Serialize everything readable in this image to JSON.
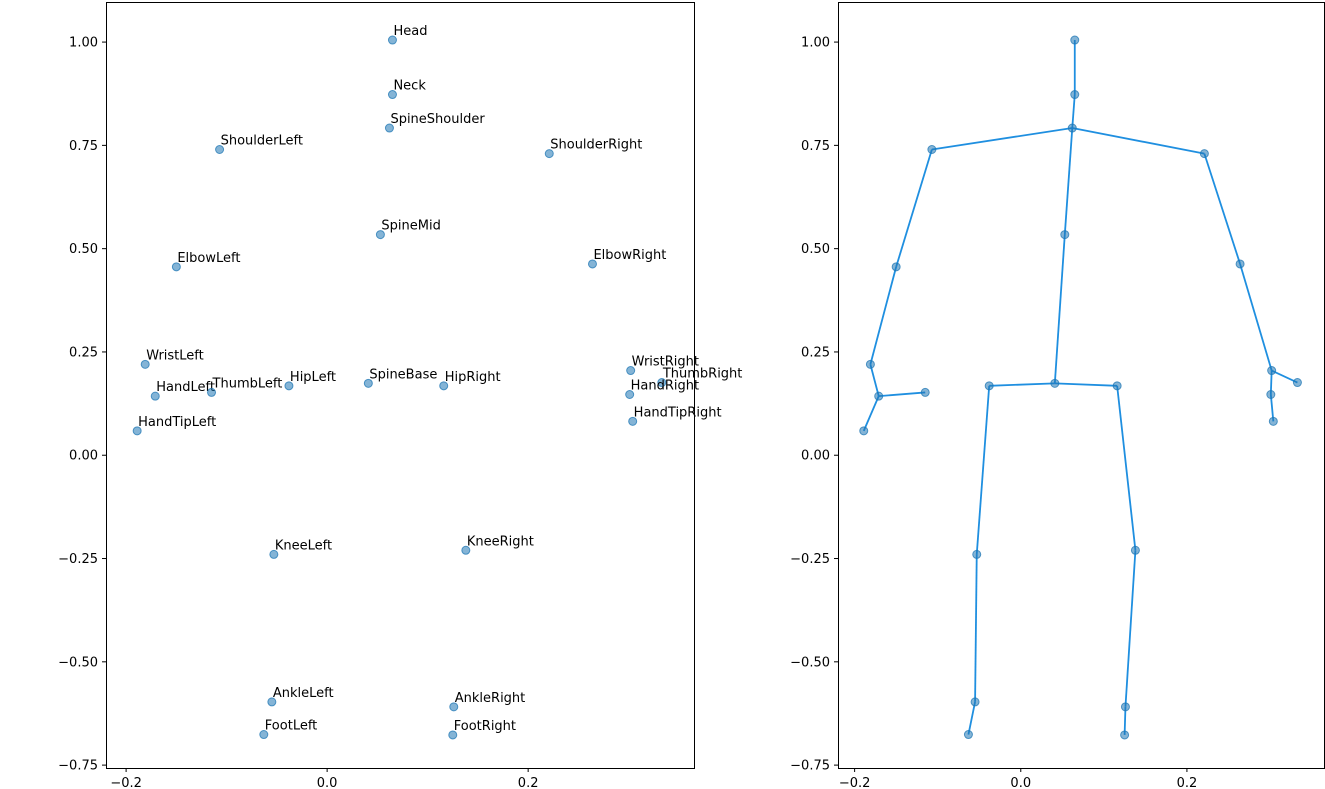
{
  "chart_data": [
    {
      "type": "scatter",
      "title": "",
      "xlabel": "",
      "ylabel": "",
      "xlim": [
        -0.22,
        0.365
      ],
      "ylim": [
        -0.757,
        1.097
      ],
      "xticks": [
        -0.2,
        0.0,
        0.2
      ],
      "xtick_labels": [
        "−0.2",
        "0.0",
        "0.2"
      ],
      "yticks": [
        -0.75,
        -0.5,
        -0.25,
        0.0,
        0.25,
        0.5,
        0.75,
        1.0
      ],
      "ytick_labels": [
        "−0.75",
        "−0.50",
        "−0.25",
        "0.00",
        "0.25",
        "0.50",
        "0.75",
        "1.00"
      ],
      "grid": false,
      "marker_color": "#1f77b4",
      "points": [
        {
          "label": "Head",
          "x": 0.065,
          "y": 1.005
        },
        {
          "label": "Neck",
          "x": 0.065,
          "y": 0.873
        },
        {
          "label": "SpineShoulder",
          "x": 0.062,
          "y": 0.792
        },
        {
          "label": "ShoulderLeft",
          "x": -0.107,
          "y": 0.74
        },
        {
          "label": "ShoulderRight",
          "x": 0.221,
          "y": 0.73
        },
        {
          "label": "SpineMid",
          "x": 0.053,
          "y": 0.534
        },
        {
          "label": "ElbowLeft",
          "x": -0.15,
          "y": 0.456
        },
        {
          "label": "ElbowRight",
          "x": 0.264,
          "y": 0.463
        },
        {
          "label": "WristLeft",
          "x": -0.181,
          "y": 0.22
        },
        {
          "label": "WristRight",
          "x": 0.302,
          "y": 0.205
        },
        {
          "label": "HandLeft",
          "x": -0.171,
          "y": 0.143
        },
        {
          "label": "ThumbLeft",
          "x": -0.115,
          "y": 0.152
        },
        {
          "label": "HipLeft",
          "x": -0.038,
          "y": 0.168
        },
        {
          "label": "SpineBase",
          "x": 0.041,
          "y": 0.174
        },
        {
          "label": "HipRight",
          "x": 0.116,
          "y": 0.168
        },
        {
          "label": "ThumbRight",
          "x": 0.333,
          "y": 0.176
        },
        {
          "label": "HandRight",
          "x": 0.301,
          "y": 0.147
        },
        {
          "label": "HandTipLeft",
          "x": -0.189,
          "y": 0.059
        },
        {
          "label": "HandTipRight",
          "x": 0.304,
          "y": 0.082
        },
        {
          "label": "KneeLeft",
          "x": -0.053,
          "y": -0.24
        },
        {
          "label": "KneeRight",
          "x": 0.138,
          "y": -0.23
        },
        {
          "label": "AnkleLeft",
          "x": -0.055,
          "y": -0.597
        },
        {
          "label": "AnkleRight",
          "x": 0.126,
          "y": -0.609
        },
        {
          "label": "FootLeft",
          "x": -0.063,
          "y": -0.676
        },
        {
          "label": "FootRight",
          "x": 0.125,
          "y": -0.677
        }
      ]
    },
    {
      "type": "line",
      "title": "",
      "xlabel": "",
      "ylabel": "",
      "xlim": [
        -0.22,
        0.365
      ],
      "ylim": [
        -0.757,
        1.097
      ],
      "xticks": [
        -0.2,
        0.0,
        0.2
      ],
      "xtick_labels": [
        "−0.2",
        "0.0",
        "0.2"
      ],
      "yticks": [
        -0.75,
        -0.5,
        -0.25,
        0.0,
        0.25,
        0.5,
        0.75,
        1.0
      ],
      "ytick_labels": [
        "−0.75",
        "−0.50",
        "−0.25",
        "0.00",
        "0.25",
        "0.50",
        "0.75",
        "1.00"
      ],
      "grid": false,
      "line_color": "#1f8fe0",
      "marker_color": "#1f77b4",
      "points": [
        {
          "x": 0.065,
          "y": 1.005
        },
        {
          "x": 0.065,
          "y": 0.873
        },
        {
          "x": 0.062,
          "y": 0.792
        },
        {
          "x": -0.107,
          "y": 0.74
        },
        {
          "x": 0.221,
          "y": 0.73
        },
        {
          "x": 0.053,
          "y": 0.534
        },
        {
          "x": -0.15,
          "y": 0.456
        },
        {
          "x": 0.264,
          "y": 0.463
        },
        {
          "x": -0.181,
          "y": 0.22
        },
        {
          "x": 0.302,
          "y": 0.205
        },
        {
          "x": -0.171,
          "y": 0.143
        },
        {
          "x": -0.115,
          "y": 0.152
        },
        {
          "x": -0.038,
          "y": 0.168
        },
        {
          "x": 0.041,
          "y": 0.174
        },
        {
          "x": 0.116,
          "y": 0.168
        },
        {
          "x": 0.333,
          "y": 0.176
        },
        {
          "x": 0.301,
          "y": 0.147
        },
        {
          "x": -0.189,
          "y": 0.059
        },
        {
          "x": 0.304,
          "y": 0.082
        },
        {
          "x": -0.053,
          "y": -0.24
        },
        {
          "x": 0.138,
          "y": -0.23
        },
        {
          "x": -0.055,
          "y": -0.597
        },
        {
          "x": 0.126,
          "y": -0.609
        },
        {
          "x": -0.063,
          "y": -0.676
        },
        {
          "x": 0.125,
          "y": -0.677
        }
      ],
      "bones": [
        [
          0,
          1
        ],
        [
          1,
          2
        ],
        [
          2,
          5
        ],
        [
          5,
          13
        ],
        [
          2,
          3
        ],
        [
          3,
          6
        ],
        [
          6,
          8
        ],
        [
          8,
          10
        ],
        [
          10,
          17
        ],
        [
          10,
          11
        ],
        [
          2,
          4
        ],
        [
          4,
          7
        ],
        [
          7,
          9
        ],
        [
          9,
          16
        ],
        [
          16,
          18
        ],
        [
          9,
          15
        ],
        [
          13,
          12
        ],
        [
          12,
          19
        ],
        [
          19,
          21
        ],
        [
          21,
          23
        ],
        [
          13,
          14
        ],
        [
          14,
          20
        ],
        [
          20,
          22
        ],
        [
          22,
          24
        ]
      ]
    }
  ]
}
